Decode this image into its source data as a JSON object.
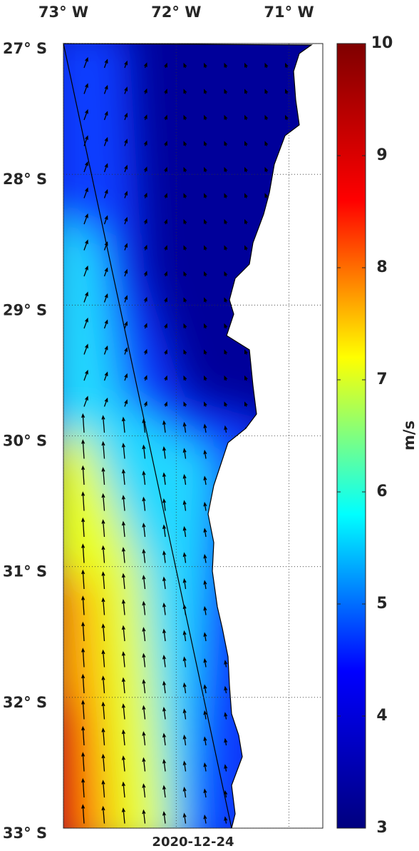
{
  "map": {
    "type": "wind-map",
    "date": "2020-12-24",
    "xlim": [
      -73,
      -70.7
    ],
    "ylim": [
      -33,
      -27
    ],
    "xticks": [
      {
        "value": -73,
        "label": "73° W"
      },
      {
        "value": -72,
        "label": "72° W"
      },
      {
        "value": -71,
        "label": "71° W"
      }
    ],
    "yticks": [
      {
        "value": -27,
        "label": "27° S"
      },
      {
        "value": -28,
        "label": "28° S"
      },
      {
        "value": -29,
        "label": "29° S"
      },
      {
        "value": -30,
        "label": "30° S"
      },
      {
        "value": -31,
        "label": "31° S"
      },
      {
        "value": -32,
        "label": "32° S"
      },
      {
        "value": -33,
        "label": "33° S"
      }
    ],
    "grid": true,
    "colorbar": {
      "label": "m/s",
      "clim": [
        3,
        10
      ],
      "ticks": [
        3,
        4,
        5,
        6,
        7,
        8,
        9,
        10
      ],
      "colormap": [
        "#00007f",
        "#0000ff",
        "#00ffff",
        "#ffff00",
        "#ff0000",
        "#7f0000"
      ]
    }
  }
}
